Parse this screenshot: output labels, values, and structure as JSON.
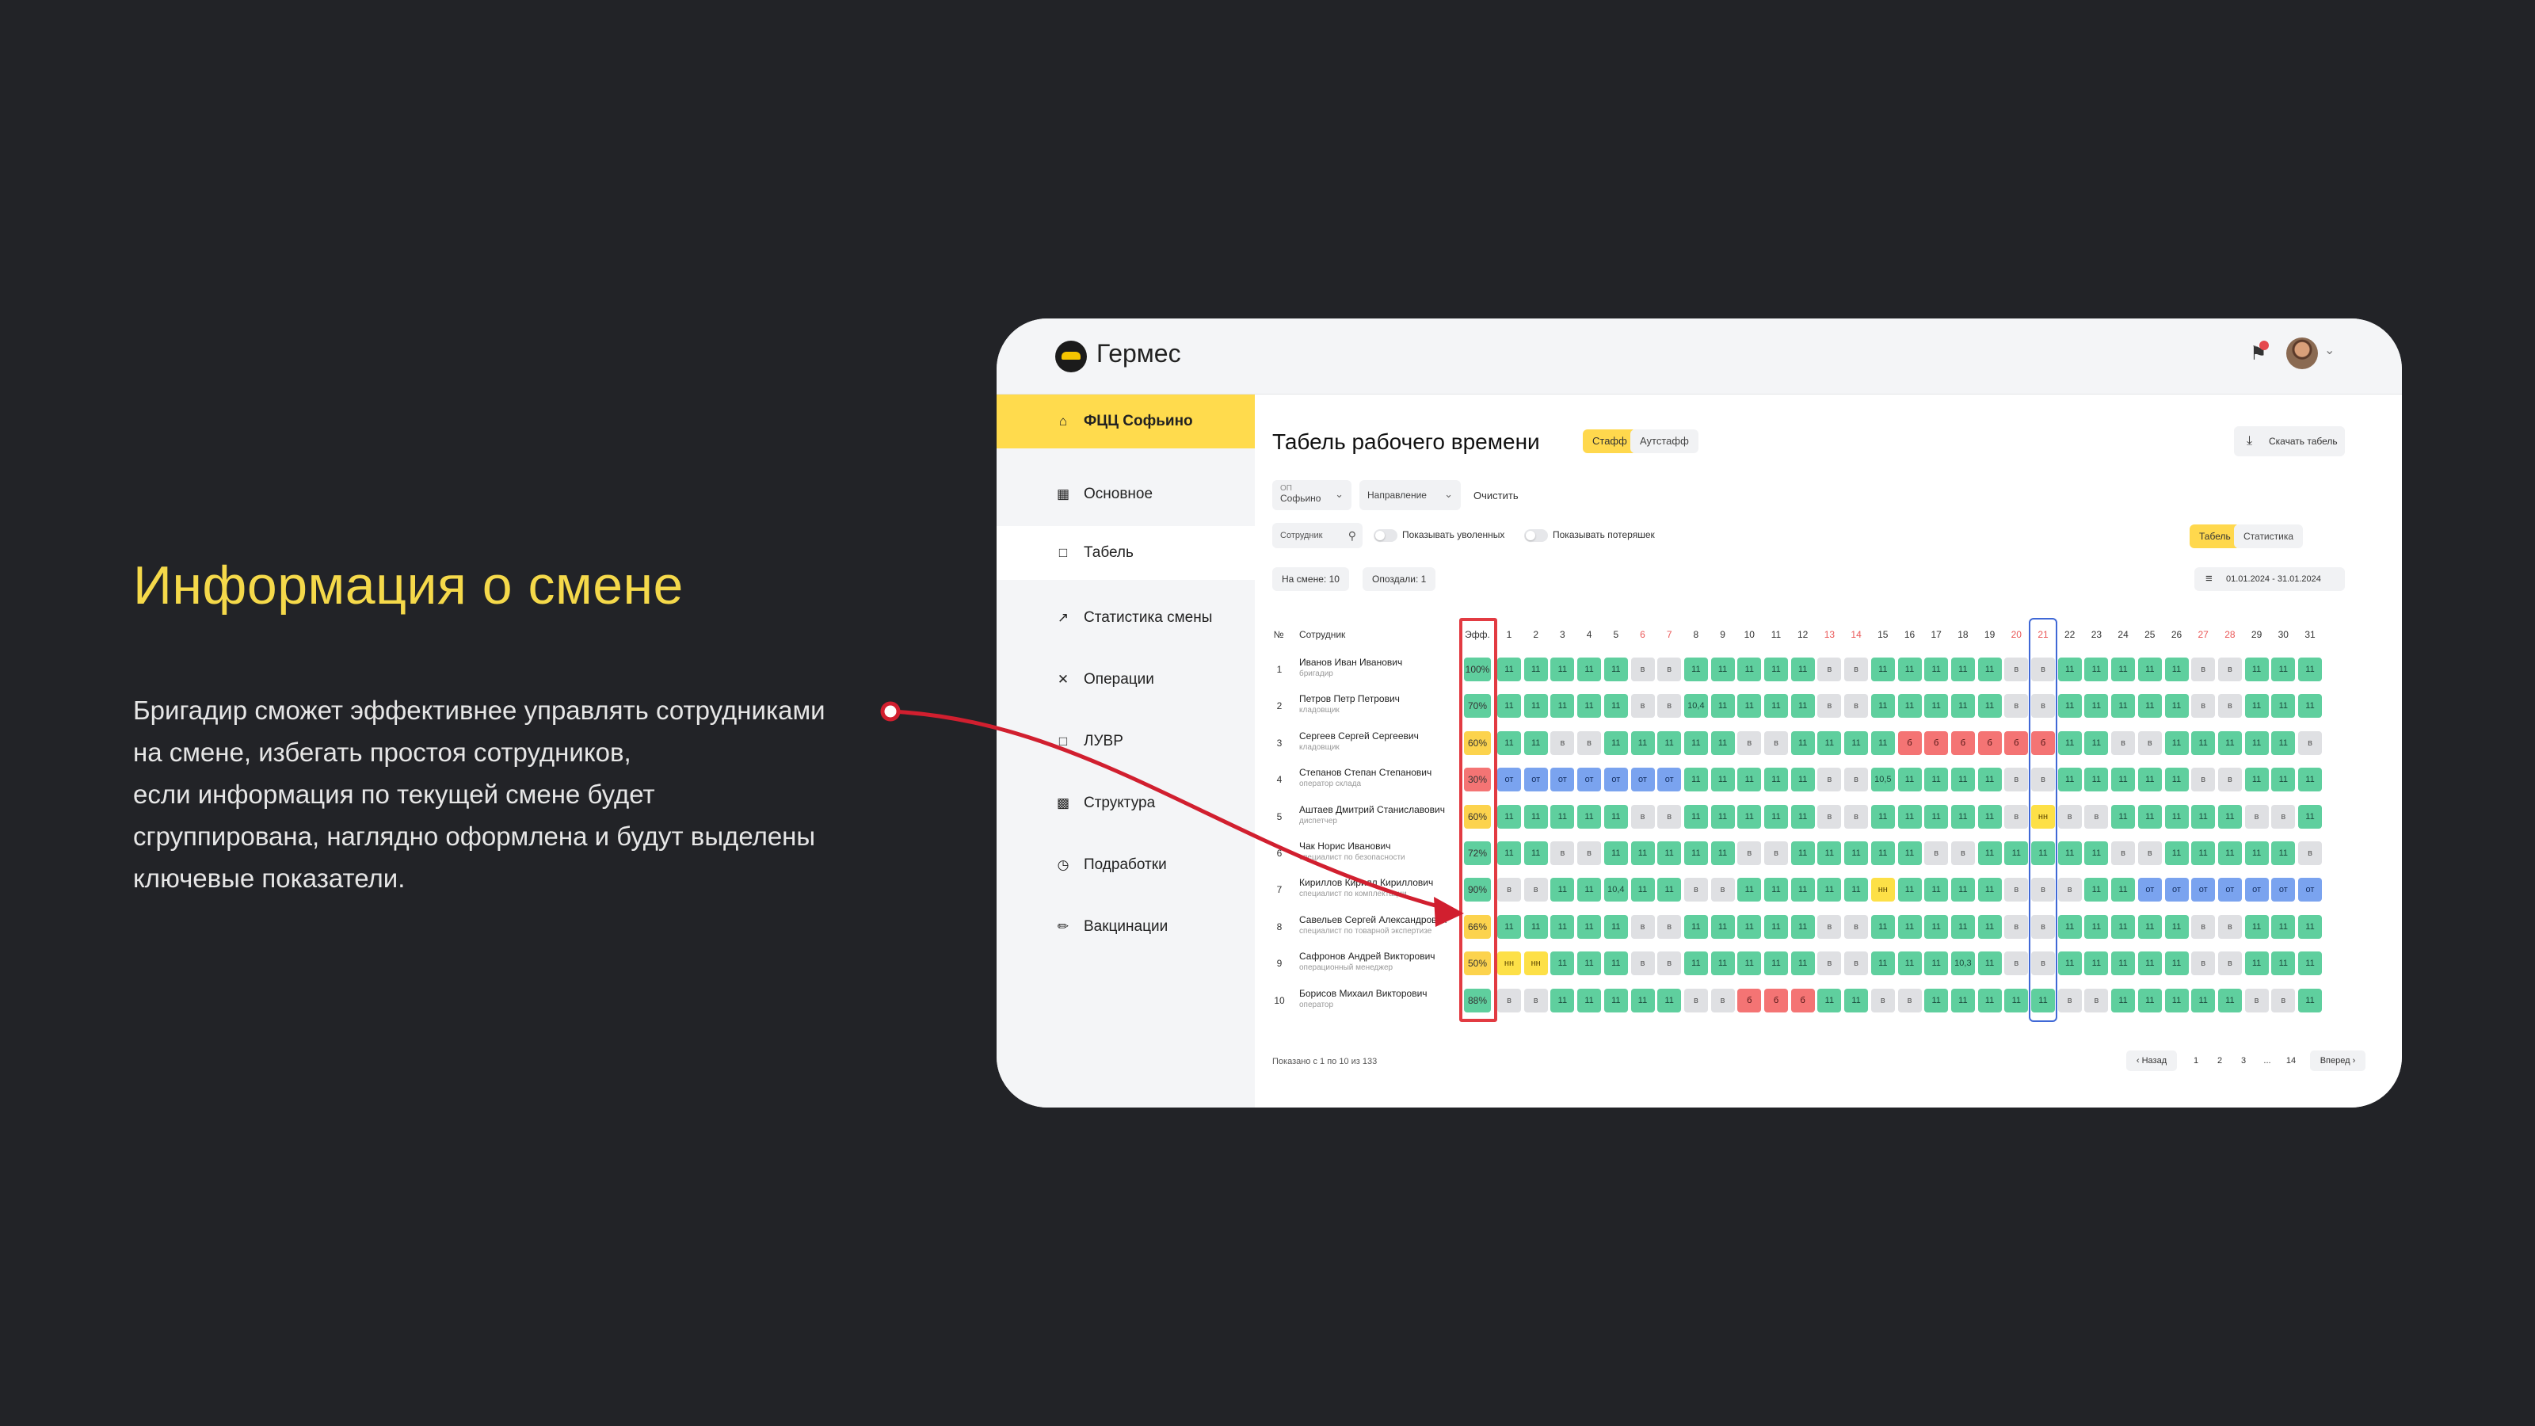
{
  "slide": {
    "title": "Информация о смене",
    "lines": [
      "Бригадир сможет эффективнее управлять сотрудниками",
      "на смене, избегать простоя сотрудников,",
      "если информация по текущей смене будет",
      "сгруппирована, наглядно оформлена и будут выделены",
      "ключевые показатели."
    ]
  },
  "app": {
    "brand": "Гермес",
    "icons": {
      "logo": "hermes-logo-icon",
      "bell": "bell-icon",
      "avatar": "user-avatar"
    },
    "colors": {
      "accent": "#ffdb4d",
      "work": "#5fcf9e",
      "off": "#dfe0e3",
      "vacation": "#7aa3ef",
      "sick": "#f47474",
      "absent": "#fde047",
      "highlight_red": "#e23b42",
      "highlight_blue": "#3f68d6"
    }
  },
  "sidebar": {
    "items": [
      {
        "label": "ФЦЦ Софьино",
        "icon": "home-icon"
      },
      {
        "label": "Основное",
        "icon": "grid-icon"
      },
      {
        "label": "Табель",
        "icon": "folder-icon"
      },
      {
        "label": "Статистика смены",
        "icon": "trend-icon"
      },
      {
        "label": "Операции",
        "icon": "tools-icon"
      },
      {
        "label": "ЛУВР",
        "icon": "folder-icon"
      },
      {
        "label": "Структура",
        "icon": "structure-icon"
      },
      {
        "label": "Подработки",
        "icon": "clock-plus-icon"
      },
      {
        "label": "Вакцинации",
        "icon": "syringe-icon"
      }
    ]
  },
  "main": {
    "title": "Табель рабочего времени",
    "tab_staff": "Стафф",
    "tab_outstaff": "Аутстафф",
    "download": "Скачать табель",
    "filter_op_caption": "ОП",
    "filter_op_value": "Софьино",
    "filter_direction": "Направление",
    "clear": "Очистить",
    "search_placeholder": "Сотрудник",
    "toggle_fired": "Показывать уволенных",
    "toggle_lost": "Показывать потеряшек",
    "view_tabel": "Табель",
    "view_stats": "Статистика",
    "on_shift": "На смене: 10",
    "late": "Опоздали: 1",
    "date_range": "01.01.2024 - 31.01.2024"
  },
  "table": {
    "head_num": "№",
    "head_employee": "Сотрудник",
    "head_eff": "Эфф.",
    "days": [
      "1",
      "2",
      "3",
      "4",
      "5",
      "6",
      "7",
      "8",
      "9",
      "10",
      "11",
      "12",
      "13",
      "14",
      "15",
      "16",
      "17",
      "18",
      "19",
      "20",
      "21",
      "22",
      "23",
      "24",
      "25",
      "26",
      "27",
      "28",
      "29",
      "30",
      "31"
    ],
    "weekend_days": [
      6,
      7,
      13,
      14,
      20,
      21,
      27,
      28
    ],
    "current_day": 21,
    "rows": [
      {
        "n": "1",
        "name": "Иванов Иван Иванович",
        "role": "бригадир",
        "eff": "100%",
        "eff_color": "#5fcf9e",
        "cells": [
          "11",
          "11",
          "11",
          "11",
          "11",
          "в",
          "в",
          "11",
          "11",
          "11",
          "11",
          "11",
          "в",
          "в",
          "11",
          "11",
          "11",
          "11",
          "11",
          "в",
          "в",
          "11",
          "11",
          "11",
          "11",
          "11",
          "в",
          "в",
          "11",
          "11",
          "11"
        ]
      },
      {
        "n": "2",
        "name": "Петров Петр Петрович",
        "role": "кладовщик",
        "eff": "70%",
        "eff_color": "#5fcf9e",
        "cells": [
          "11",
          "11",
          "11",
          "11",
          "11",
          "в",
          "в",
          "10,4",
          "11",
          "11",
          "11",
          "11",
          "в",
          "в",
          "11",
          "11",
          "11",
          "11",
          "11",
          "в",
          "в",
          "11",
          "11",
          "11",
          "11",
          "11",
          "в",
          "в",
          "11",
          "11",
          "11"
        ]
      },
      {
        "n": "3",
        "name": "Сергеев Сергей Сергеевич",
        "role": "кладовщик",
        "eff": "60%",
        "eff_color": "#fcd34d",
        "cells": [
          "11",
          "11",
          "в",
          "в",
          "11",
          "11",
          "11",
          "11",
          "11",
          "в",
          "в",
          "11",
          "11",
          "11",
          "11",
          "б",
          "б",
          "б",
          "б",
          "б",
          "б",
          "11",
          "11",
          "в",
          "в",
          "11",
          "11",
          "11",
          "11",
          "11",
          "в"
        ]
      },
      {
        "n": "4",
        "name": "Степанов Степан Степанович",
        "role": "оператор склада",
        "eff": "30%",
        "eff_color": "#f47474",
        "cells": [
          "от",
          "от",
          "от",
          "от",
          "от",
          "от",
          "от",
          "11",
          "11",
          "11",
          "11",
          "11",
          "в",
          "в",
          "10,5",
          "11",
          "11",
          "11",
          "11",
          "в",
          "в",
          "11",
          "11",
          "11",
          "11",
          "11",
          "в",
          "в",
          "11",
          "11",
          "11"
        ]
      },
      {
        "n": "5",
        "name": "Аштаев Дмитрий Станиславович",
        "role": "диспетчер",
        "eff": "60%",
        "eff_color": "#fcd34d",
        "cells": [
          "11",
          "11",
          "11",
          "11",
          "11",
          "в",
          "в",
          "11",
          "11",
          "11",
          "11",
          "11",
          "в",
          "в",
          "11",
          "11",
          "11",
          "11",
          "11",
          "в",
          "нн",
          "в",
          "в",
          "11",
          "11",
          "11",
          "11",
          "11",
          "в",
          "в",
          "11"
        ]
      },
      {
        "n": "6",
        "name": "Чак Норис Иванович",
        "role": "специалист по безопасности",
        "eff": "72%",
        "eff_color": "#5fcf9e",
        "cells": [
          "11",
          "11",
          "в",
          "в",
          "11",
          "11",
          "11",
          "11",
          "11",
          "в",
          "в",
          "11",
          "11",
          "11",
          "11",
          "11",
          "в",
          "в",
          "11",
          "11",
          "11",
          "11",
          "11",
          "в",
          "в",
          "11",
          "11",
          "11",
          "11",
          "11",
          "в"
        ]
      },
      {
        "n": "7",
        "name": "Кириллов Кирилл Кириллович",
        "role": "специалист по комплектации",
        "eff": "90%",
        "eff_color": "#5fcf9e",
        "cells": [
          "в",
          "в",
          "11",
          "11",
          "10,4",
          "11",
          "11",
          "в",
          "в",
          "11",
          "11",
          "11",
          "11",
          "11",
          "нн",
          "11",
          "11",
          "11",
          "11",
          "в",
          "в",
          "в",
          "11",
          "11",
          "от",
          "от",
          "от",
          "от",
          "от",
          "от",
          "от"
        ]
      },
      {
        "n": "8",
        "name": "Савельев Сергей Александрович",
        "role": "специалист по товарной экспертизе",
        "eff": "66%",
        "eff_color": "#fcd34d",
        "cells": [
          "11",
          "11",
          "11",
          "11",
          "11",
          "в",
          "в",
          "11",
          "11",
          "11",
          "11",
          "11",
          "в",
          "в",
          "11",
          "11",
          "11",
          "11",
          "11",
          "в",
          "в",
          "11",
          "11",
          "11",
          "11",
          "11",
          "в",
          "в",
          "11",
          "11",
          "11"
        ]
      },
      {
        "n": "9",
        "name": "Сафронов Андрей Викторович",
        "role": "операционный менеджер",
        "eff": "50%",
        "eff_color": "#fcd34d",
        "cells": [
          "нн",
          "нн",
          "11",
          "11",
          "11",
          "в",
          "в",
          "11",
          "11",
          "11",
          "11",
          "11",
          "в",
          "в",
          "11",
          "11",
          "11",
          "10,3",
          "11",
          "в",
          "в",
          "11",
          "11",
          "11",
          "11",
          "11",
          "в",
          "в",
          "11",
          "11",
          "11"
        ]
      },
      {
        "n": "10",
        "name": "Борисов Михаил Викторович",
        "role": "оператор",
        "eff": "88%",
        "eff_color": "#5fcf9e",
        "cells": [
          "в",
          "в",
          "11",
          "11",
          "11",
          "11",
          "11",
          "в",
          "в",
          "б",
          "б",
          "б",
          "11",
          "11",
          "в",
          "в",
          "11",
          "11",
          "11",
          "11",
          "11",
          "в",
          "в",
          "11",
          "11",
          "11",
          "11",
          "11",
          "в",
          "в",
          "11"
        ]
      }
    ]
  },
  "footer": {
    "shown": "Показано с 1 по 10 из 133",
    "prev": "‹ Назад",
    "pages": [
      "1",
      "2",
      "3",
      "...",
      "14"
    ],
    "next": "Вперед ›"
  }
}
